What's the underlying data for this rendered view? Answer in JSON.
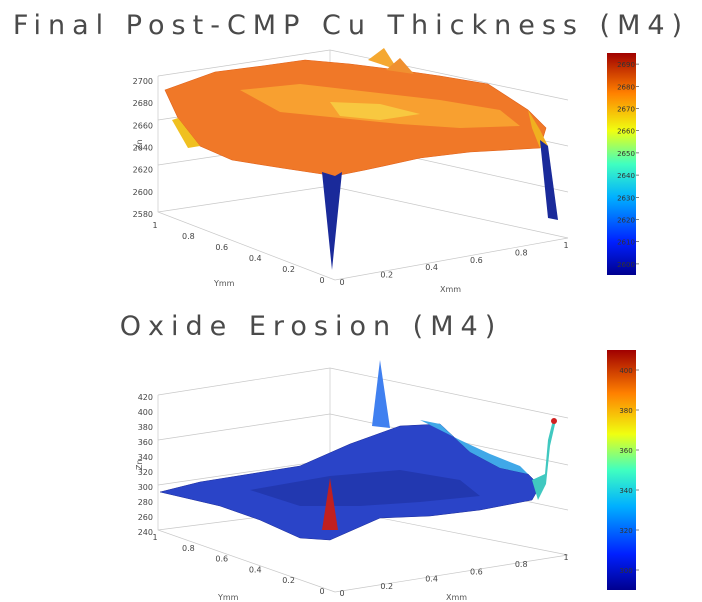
{
  "chart_data": [
    {
      "type": "surface3d",
      "title": "Final Post-CMP Cu Thickness (M4)",
      "xlabel": "Xmm",
      "ylabel": "Ymm",
      "zlabel": "Zn",
      "x_ticks": [
        "0",
        "0.2",
        "0.4",
        "0.6",
        "0.8",
        "1"
      ],
      "y_ticks": [
        "0",
        "0.2",
        "0.4",
        "0.6",
        "0.8",
        "1"
      ],
      "z_ticks": [
        "2580",
        "2600",
        "2620",
        "2640",
        "2660",
        "2680",
        "2700"
      ],
      "zlim": [
        2580,
        2700
      ],
      "colorbar_ticks": [
        "2600",
        "2610",
        "2620",
        "2630",
        "2640",
        "2650",
        "2660",
        "2670",
        "2680",
        "2690"
      ],
      "colorbar_range": [
        2595,
        2695
      ],
      "colormap": "jet",
      "grid": true
    },
    {
      "type": "surface3d",
      "title": "Oxide Erosion (M4)",
      "xlabel": "Xmm",
      "ylabel": "Ymm",
      "zlabel": "Zn",
      "x_ticks": [
        "0",
        "0.2",
        "0.4",
        "0.6",
        "0.8",
        "1"
      ],
      "y_ticks": [
        "0",
        "0.2",
        "0.4",
        "0.6",
        "0.8",
        "1"
      ],
      "z_ticks": [
        "240",
        "260",
        "280",
        "300",
        "320",
        "340",
        "360",
        "380",
        "400",
        "420"
      ],
      "zlim": [
        240,
        420
      ],
      "colorbar_ticks": [
        "300",
        "320",
        "340",
        "360",
        "380",
        "400"
      ],
      "colorbar_range": [
        290,
        410
      ],
      "colormap": "jet",
      "grid": true
    }
  ]
}
